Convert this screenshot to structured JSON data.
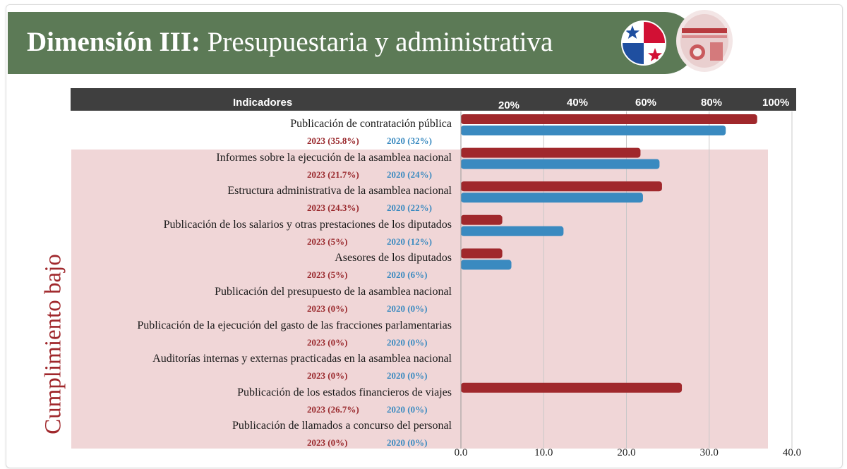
{
  "title_bold": "Dimensión III:",
  "title_rest": " Presupuestaria y administrativa",
  "header": {
    "indicadores": "Indicadores",
    "pct_labels": [
      "20%",
      "40%",
      "60%",
      "80%",
      "100%"
    ]
  },
  "side_label": "Cumplimiento bajo",
  "colors": {
    "series_2023": "#a0282c",
    "series_2020": "#3a8ac0",
    "banner": "#5c7a56",
    "zone": "#f0d6d7"
  },
  "chart_data": {
    "type": "bar",
    "orientation": "horizontal",
    "xlim": [
      0,
      40
    ],
    "x_ticks": [
      "0.0",
      "10.0",
      "20.0",
      "30.0",
      "40.0"
    ],
    "grid": true,
    "categories": [
      "Publicación de contratación pública",
      "Informes sobre la ejecución de la asamblea nacional",
      "Estructura administrativa de la asamblea nacional",
      "Publicación de los salarios y otras prestaciones de los diputados",
      "Asesores de los diputados",
      "Publicación del presupuesto de la asamblea nacional",
      "Publicación de la ejecución del gasto de las fracciones parlamentarias",
      "Auditorías internas y externas practicadas en la asamblea nacional",
      "Publicación de los estados financieros de viajes",
      "Publicación de llamados a concurso del personal"
    ],
    "series": [
      {
        "values": [
          35.8,
          21.7,
          24.3,
          5,
          5,
          0,
          0,
          0,
          26.7,
          0
        ]
      },
      {
        "values": [
          32,
          24,
          22,
          12.4,
          6.1,
          0,
          0,
          0,
          0,
          0
        ]
      }
    ],
    "value_labels_2023": [
      "2023 (35.8%)",
      "2023 (21.7%)",
      "2023 (24.3%)",
      "2023 (5%)",
      "2023 (5%)",
      "2023 (0%)",
      "2023 (0%)",
      "2023 (0%)",
      "2023 (26.7%)",
      "2023 (0%)"
    ],
    "value_labels_2020": [
      "2020 (32%)",
      "2020 (24%)",
      "2020 (22%)",
      "2020 (12%)",
      "2020 (6%)",
      "2020 (0%)",
      "2020 (0%)",
      "2020 (0%)",
      "2020 (0%)",
      "2020 (0%)"
    ]
  }
}
